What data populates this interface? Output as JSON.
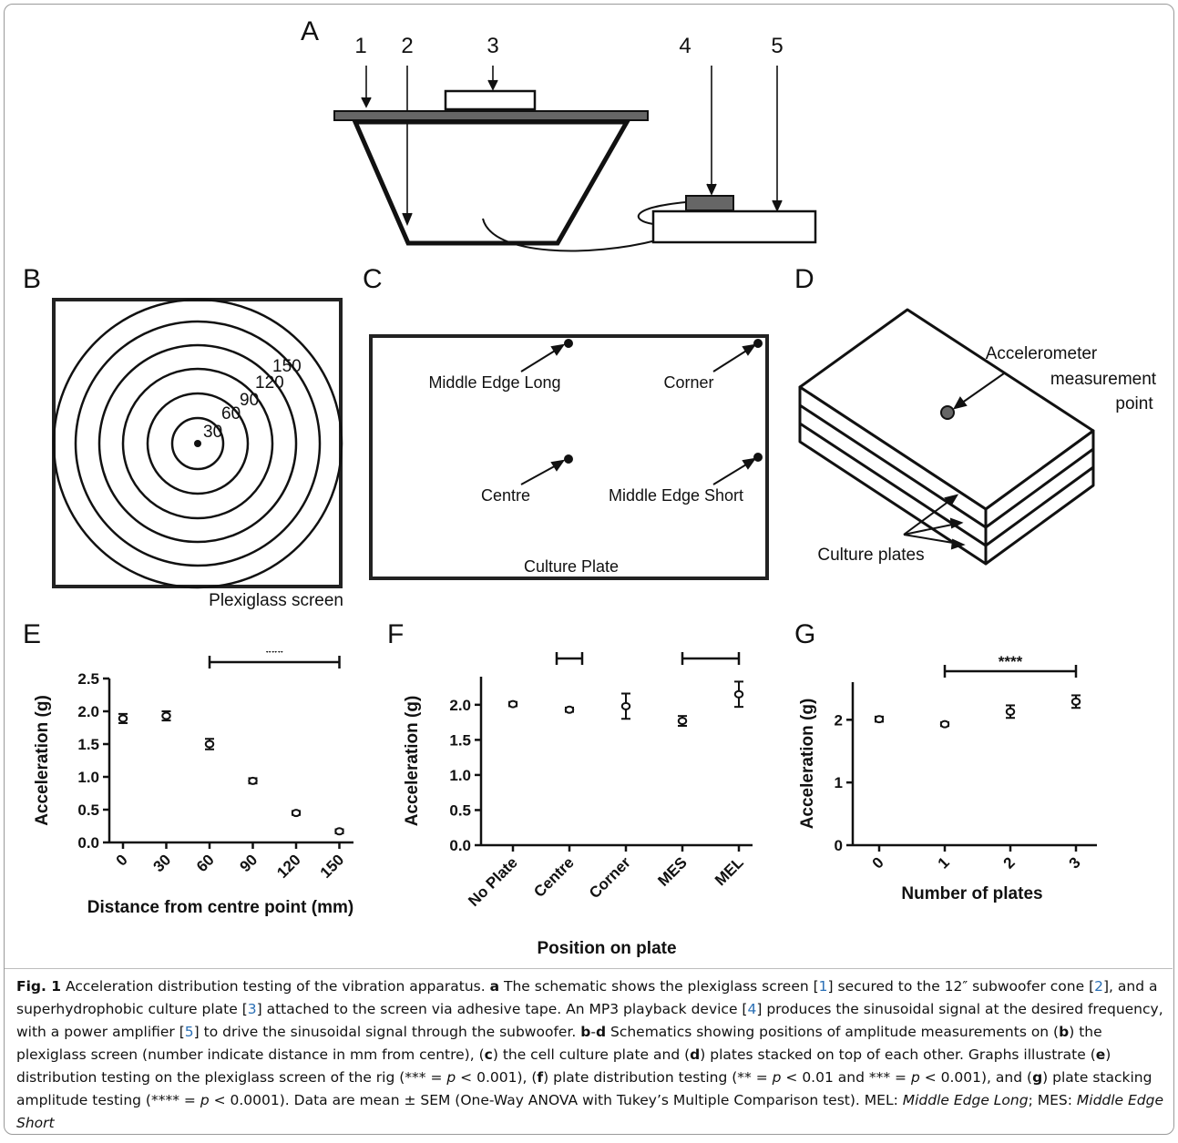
{
  "panels": {
    "A": {
      "letter": "A",
      "callouts": [
        "1",
        "2",
        "3",
        "4",
        "5"
      ]
    },
    "B": {
      "letter": "B",
      "ring_labels": [
        "30",
        "60",
        "90",
        "120",
        "150"
      ],
      "caption": "Plexiglass screen"
    },
    "C": {
      "letter": "C",
      "points": [
        {
          "label": "Middle Edge Long"
        },
        {
          "label": "Corner"
        },
        {
          "label": "Centre"
        },
        {
          "label": "Middle Edge Short"
        }
      ],
      "caption": "Culture Plate"
    },
    "D": {
      "letter": "D",
      "point_label": [
        "Accelerometer",
        "measurement",
        "point"
      ],
      "plates_label": "Culture plates"
    }
  },
  "chart_data": [
    {
      "panel": "E",
      "type": "scatter",
      "categories": [
        "0",
        "30",
        "60",
        "90",
        "120",
        "150"
      ],
      "values": [
        1.89,
        1.93,
        1.5,
        0.94,
        0.45,
        0.17
      ],
      "errors": [
        0.07,
        0.07,
        0.08,
        0.04,
        0.03,
        0.03
      ],
      "xlabel": "Distance from centre point (mm)",
      "ylabel": "Acceleration  (g)",
      "ylim": [
        0,
        2.5
      ],
      "yticks": [
        "0.0",
        "0.5",
        "1.0",
        "1.5",
        "2.0",
        "2.5"
      ],
      "significance": [
        {
          "from": 2,
          "to": 5,
          "label": "***"
        }
      ]
    },
    {
      "panel": "F",
      "type": "scatter",
      "categories": [
        "No Plate",
        "Centre",
        "Corner",
        "MES",
        "MEL"
      ],
      "values": [
        2.01,
        1.93,
        1.98,
        1.77,
        2.15
      ],
      "errors": [
        0.03,
        0.03,
        0.18,
        0.07,
        0.18
      ],
      "xlabel": "Position on plate",
      "ylabel": "Acceleration  (g)",
      "ylim": [
        0,
        2.4
      ],
      "yticks": [
        "0.0",
        "0.5",
        "1.0",
        "1.5",
        "2.0"
      ],
      "significance": [
        {
          "from": 1,
          "to": 1,
          "label": "**"
        },
        {
          "from": 3,
          "to": 4,
          "label": "***"
        }
      ]
    },
    {
      "panel": "G",
      "type": "scatter",
      "categories": [
        "0",
        "1",
        "2",
        "3"
      ],
      "values": [
        2.01,
        1.93,
        2.13,
        2.29
      ],
      "errors": [
        0.04,
        0.03,
        0.1,
        0.1
      ],
      "xlabel": "Number of plates",
      "ylabel": "Acceleration  (g)",
      "ylim": [
        0,
        2.6
      ],
      "yticks": [
        "0",
        "1",
        "2"
      ],
      "significance": [
        {
          "from": 1,
          "to": 3,
          "label": "****"
        }
      ]
    }
  ],
  "caption": {
    "fig_label": "Fig. 1",
    "title": " Acceleration distribution testing of the vibration apparatus. ",
    "body_html": "<b>a</b> The schematic shows the plexiglass screen [<span style=\"color:#2a6fb5\">1</span>] secured to the 12″ subwoofer cone [<span style=\"color:#2a6fb5\">2</span>], and a superhydrophobic culture plate [<span style=\"color:#2a6fb5\">3</span>] attached to the screen via adhesive tape. An MP3 playback device [<span style=\"color:#2a6fb5\">4</span>] produces the sinusoidal signal at the desired frequency, with a power amplifier [<span style=\"color:#2a6fb5\">5</span>] to drive the sinusoidal signal through the subwoofer. <b>b</b>-<b>d</b> Schematics showing positions of amplitude measurements on (<b>b</b>) the plexiglass screen (number indicate distance in mm from centre), (<b>c</b>) the cell culture plate and (<b>d</b>) plates stacked on top of each other. Graphs illustrate (<b>e</b>) distribution testing on the plexiglass screen of the rig (*** = <i>p</i> &lt; 0.001), (<b>f</b>) plate distribution testing (** = <i>p</i> &lt; 0.01 and *** = <i>p</i> &lt; 0.001), and (<b>g</b>) plate stacking amplitude testing (**** = <i>p</i> &lt; 0.0001). Data are mean ± SEM (One-Way ANOVA with Tukey’s Multiple Comparison test). MEL: <i>Middle Edge Long</i>; MES: <i>Middle Edge Short</i>"
  }
}
